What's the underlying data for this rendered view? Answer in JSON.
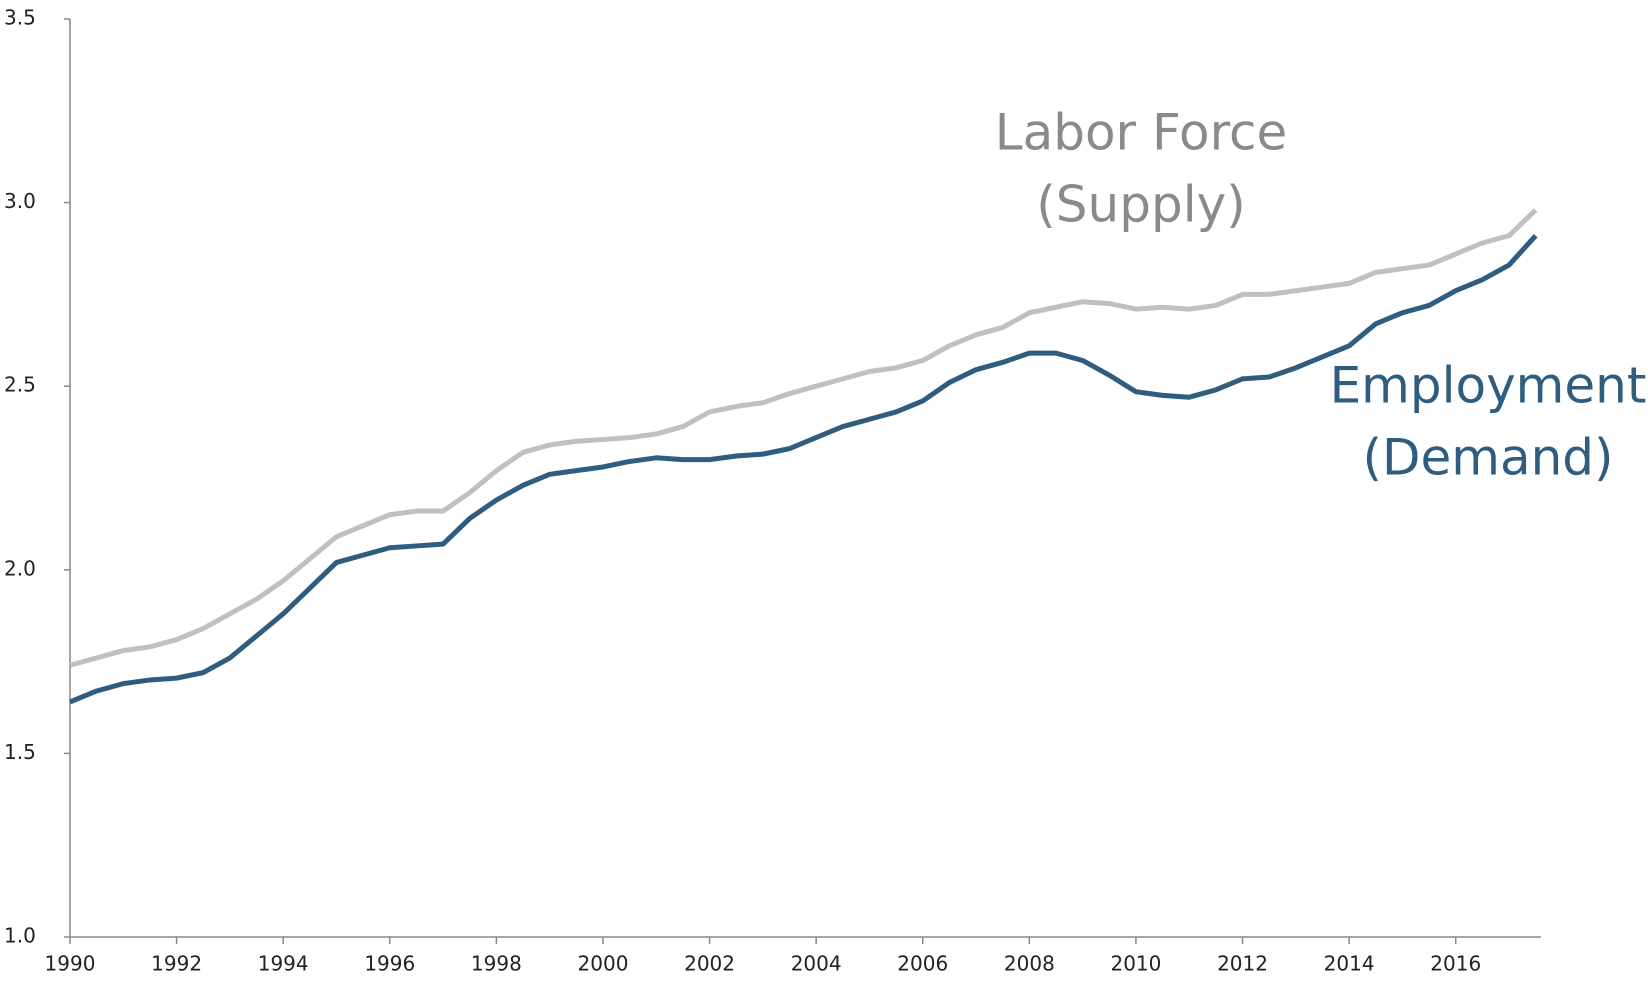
{
  "chart_data": {
    "type": "line",
    "x": [
      1990,
      1990.5,
      1991,
      1991.5,
      1992,
      1992.5,
      1993,
      1993.5,
      1994,
      1994.5,
      1995,
      1995.5,
      1996,
      1996.5,
      1997,
      1997.5,
      1998,
      1998.5,
      1999,
      1999.5,
      2000,
      2000.5,
      2001,
      2001.5,
      2002,
      2002.5,
      2003,
      2003.5,
      2004,
      2004.5,
      2005,
      2005.5,
      2006,
      2006.5,
      2007,
      2007.5,
      2008,
      2008.5,
      2009,
      2009.5,
      2010,
      2010.5,
      2011,
      2011.5,
      2012,
      2012.5,
      2013,
      2013.5,
      2014,
      2014.5,
      2015,
      2015.5,
      2016,
      2016.5,
      2017,
      2017.5
    ],
    "series": [
      {
        "name": "Labor Force",
        "note": "(Supply)",
        "color": "#c0c0c0",
        "values": [
          1.74,
          1.76,
          1.78,
          1.79,
          1.81,
          1.84,
          1.88,
          1.92,
          1.97,
          2.03,
          2.09,
          2.12,
          2.15,
          2.16,
          2.16,
          2.21,
          2.27,
          2.32,
          2.34,
          2.35,
          2.355,
          2.36,
          2.37,
          2.39,
          2.43,
          2.445,
          2.455,
          2.48,
          2.5,
          2.52,
          2.54,
          2.55,
          2.57,
          2.61,
          2.64,
          2.66,
          2.7,
          2.715,
          2.73,
          2.725,
          2.71,
          2.715,
          2.71,
          2.72,
          2.75,
          2.75,
          2.76,
          2.77,
          2.78,
          2.81,
          2.82,
          2.83,
          2.86,
          2.89,
          2.91,
          2.98
        ]
      },
      {
        "name": "Employment",
        "note": "(Demand)",
        "color": "#2e5d80",
        "values": [
          1.64,
          1.67,
          1.69,
          1.7,
          1.705,
          1.72,
          1.76,
          1.82,
          1.88,
          1.95,
          2.02,
          2.04,
          2.06,
          2.065,
          2.07,
          2.14,
          2.19,
          2.23,
          2.26,
          2.27,
          2.28,
          2.295,
          2.305,
          2.3,
          2.3,
          2.31,
          2.315,
          2.33,
          2.36,
          2.39,
          2.41,
          2.43,
          2.46,
          2.51,
          2.545,
          2.565,
          2.59,
          2.59,
          2.57,
          2.53,
          2.485,
          2.475,
          2.47,
          2.49,
          2.52,
          2.525,
          2.55,
          2.58,
          2.61,
          2.67,
          2.7,
          2.72,
          2.76,
          2.79,
          2.83,
          2.91
        ]
      }
    ],
    "label_colors": [
      "#8a8a8a",
      "#2e5d80"
    ],
    "xlim": [
      1990,
      2017.6
    ],
    "xticks": [
      1990,
      1992,
      1994,
      1996,
      1998,
      2000,
      2002,
      2004,
      2006,
      2008,
      2010,
      2012,
      2014,
      2016
    ],
    "ylim": [
      1.0,
      3.5
    ],
    "yticks": [
      {
        "value": 1.0,
        "label": "1.0"
      },
      1.5,
      {
        "value": 2.0,
        "label": "2.0"
      },
      2.5,
      {
        "value": 3.0,
        "label": "3.0"
      },
      3.5
    ],
    "grid": false
  }
}
